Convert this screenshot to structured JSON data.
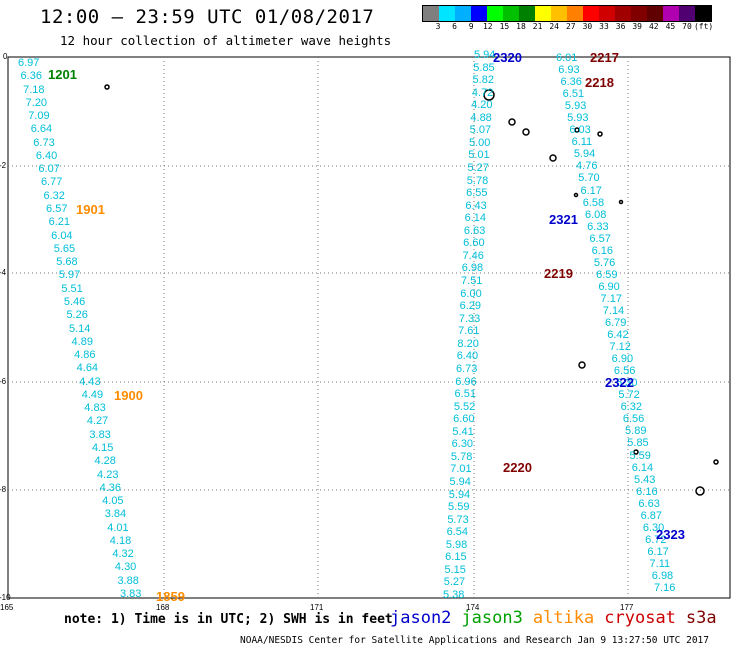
{
  "header": {
    "title": "12:00 – 23:59 UTC 01/08/2017",
    "subtitle": "12 hour collection of altimeter wave heights"
  },
  "colorbar": {
    "colors": [
      "#7f7f7f",
      "#00e5ff",
      "#00b0ff",
      "#0000ff",
      "#00ff00",
      "#00c000",
      "#008000",
      "#ffff00",
      "#ffc000",
      "#ff8000",
      "#ff0000",
      "#d00000",
      "#a00000",
      "#800000",
      "#600000",
      "#b000b0",
      "#500070",
      "#000000"
    ],
    "labels": [
      "3",
      "6",
      "9",
      "12",
      "15",
      "18",
      "21",
      "24",
      "27",
      "30",
      "33",
      "36",
      "39",
      "42",
      "45",
      "70",
      "(ft)"
    ]
  },
  "map": {
    "x_ticks": [
      "165",
      "168",
      "171",
      "174",
      "177"
    ],
    "y_ticks": [
      "0",
      "-2",
      "-4",
      "-6",
      "-8",
      "-10"
    ]
  },
  "passes": [
    {
      "id": "1201",
      "color": "#008000"
    },
    {
      "id": "1901",
      "color": "#ff8c00"
    },
    {
      "id": "1900",
      "color": "#ff8c00"
    },
    {
      "id": "1859",
      "color": "#ff8c00"
    },
    {
      "id": "2320",
      "color": "#0000cc"
    },
    {
      "id": "2321",
      "color": "#0000cc"
    },
    {
      "id": "2322",
      "color": "#0000cc"
    },
    {
      "id": "2323",
      "color": "#0000cc"
    },
    {
      "id": "2217",
      "color": "#800000"
    },
    {
      "id": "2218",
      "color": "#800000"
    },
    {
      "id": "2219",
      "color": "#800000"
    },
    {
      "id": "2220",
      "color": "#800000"
    }
  ],
  "tracks": {
    "west": [
      "6.97",
      "6.36",
      "7.18",
      "7.20",
      "7.09",
      "6.64",
      "6.73",
      "6.40",
      "6.07",
      "6.77",
      "6.32",
      "6.57",
      "6.21",
      "6.04",
      "5.65",
      "5.68",
      "5.97",
      "5.51",
      "5.46",
      "5.26",
      "5.14",
      "4.89",
      "4.86",
      "4.64",
      "4.43",
      "4.49",
      "4.83",
      "4.27",
      "3.83",
      "4.15",
      "4.28",
      "4.23",
      "4.36",
      "4.05",
      "3.84",
      "4.01",
      "4.18",
      "4.32",
      "4.30",
      "3.88",
      "3.83"
    ],
    "east_a": [
      "5.94",
      "5.85",
      "5.82",
      "4.72",
      "4.20",
      "4.88",
      "5.07",
      "5.00",
      "5.01",
      "5.27",
      "5.78",
      "6.55",
      "6.43",
      "6.14",
      "6.63",
      "6.60",
      "7.46",
      "6.98",
      "7.51",
      "6.00",
      "6.29",
      "7.33",
      "7.61",
      "8.20",
      "6.40",
      "6.73",
      "6.96",
      "6.51",
      "5.52",
      "6.60",
      "5.41",
      "6.30",
      "5.78",
      "7.01",
      "5.94",
      "5.94",
      "5.59",
      "5.73",
      "6.54",
      "5.98",
      "6.15",
      "5.15",
      "5.27",
      "5.38"
    ],
    "east_b": [
      "6.01",
      "6.93",
      "6.36",
      "6.51",
      "5.93",
      "5.93",
      "6.03",
      "6.11",
      "5.94",
      "4.76",
      "5.70",
      "6.17",
      "6.58",
      "6.08",
      "6.33",
      "6.57",
      "6.16",
      "5.76",
      "6.59",
      "6.90",
      "7.17",
      "7.14",
      "6.79",
      "6.42",
      "7.12",
      "6.90",
      "6.56",
      "6.30",
      "5.72",
      "6.32",
      "6.56",
      "5.89",
      "5.85",
      "5.59",
      "6.14",
      "5.43",
      "6.16",
      "6.63",
      "6.87",
      "6.30",
      "6.72",
      "6.17",
      "7.11",
      "6.98",
      "7.16"
    ]
  },
  "note": "note:  1) Time is in UTC;  2) SWH is in feet",
  "legend": [
    {
      "label": "jason2",
      "color": "#0000cc"
    },
    {
      "label": "jason3",
      "color": "#00a000"
    },
    {
      "label": "altika",
      "color": "#ff8c00"
    },
    {
      "label": "cryosat",
      "color": "#cc0000"
    },
    {
      "label": "s3a",
      "color": "#800000"
    }
  ],
  "credit": "NOAA/NESDIS Center for Satellite Applications and Research   Jan  9 13:27:50 UTC 2017"
}
